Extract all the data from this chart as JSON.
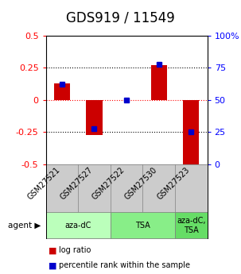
{
  "title": "GDS919 / 11549",
  "samples": [
    "GSM27521",
    "GSM27527",
    "GSM27522",
    "GSM27530",
    "GSM27523"
  ],
  "log_ratios": [
    0.13,
    -0.27,
    0.0,
    0.27,
    -0.5
  ],
  "percentile_ranks": [
    0.62,
    0.28,
    0.5,
    0.78,
    0.25
  ],
  "ylim_left": [
    -0.5,
    0.5
  ],
  "ylim_right": [
    0,
    1.0
  ],
  "yticks_left": [
    -0.5,
    -0.25,
    0,
    0.25,
    0.5
  ],
  "ytick_labels_left": [
    "-0.5",
    "-0.25",
    "0",
    "0.25",
    "0.5"
  ],
  "yticks_right": [
    0,
    0.25,
    0.5,
    0.75,
    1.0
  ],
  "ytick_labels_right": [
    "0",
    "25",
    "50",
    "75",
    "100%"
  ],
  "bar_color": "#cc0000",
  "dot_color": "#0000cc",
  "bar_width": 0.5,
  "agent_groups": [
    {
      "label": "aza-dC",
      "span": [
        0,
        2
      ],
      "color": "#bbffbb"
    },
    {
      "label": "TSA",
      "span": [
        2,
        4
      ],
      "color": "#88ee88"
    },
    {
      "label": "aza-dC,\nTSA",
      "span": [
        4,
        5
      ],
      "color": "#66dd66"
    }
  ],
  "legend_log": "log ratio",
  "legend_pct": "percentile rank within the sample",
  "title_fontsize": 12,
  "tick_fontsize": 8,
  "sample_label_fontsize": 7
}
